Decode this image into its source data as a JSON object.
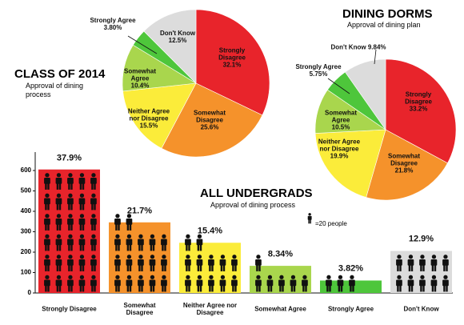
{
  "chart_data": [
    {
      "type": "pie",
      "title": "CLASS OF 2014",
      "subtitle": "Approval of dining process",
      "categories": [
        "Strongly Disagree",
        "Somewhat Disagree",
        "Neither Agree nor Disagree",
        "Somewhat Agree",
        "Strongly Agree",
        "Don't Know"
      ],
      "values": [
        32.1,
        25.6,
        15.5,
        10.4,
        3.8,
        12.5
      ],
      "value_labels": [
        "32.1%",
        "25.6%",
        "15.5%",
        "10.4%",
        "3.80%",
        "12.5%"
      ],
      "colors": [
        "#e8242b",
        "#f5922b",
        "#fbec3a",
        "#a9d64d",
        "#4ec63b",
        "#dcdcdc"
      ]
    },
    {
      "type": "pie",
      "title": "DINING DORMS",
      "subtitle": "Approval of dining plan",
      "categories": [
        "Strongly Disagree",
        "Somewhat Disagree",
        "Neither Agree nor Disagree",
        "Somewhat Agree",
        "Strongly Agree",
        "Don't Know"
      ],
      "values": [
        33.2,
        21.8,
        19.9,
        10.5,
        5.75,
        9.84
      ],
      "value_labels": [
        "33.2%",
        "21.8%",
        "19.9%",
        "10.5%",
        "5.75%",
        "9.84%"
      ],
      "colors": [
        "#e8242b",
        "#f5922b",
        "#fbec3a",
        "#a9d64d",
        "#4ec63b",
        "#dcdcdc"
      ]
    },
    {
      "type": "bar",
      "title": "ALL UNDERGRADS",
      "subtitle": "Approval of dining process",
      "legend": "=20 people",
      "categories": [
        "Strongly Disagree",
        "Somewhat Disagree",
        "Neither Agree nor Disagree",
        "Somewhat Agree",
        "Strongly Agree",
        "Don't Know"
      ],
      "values": [
        605,
        346,
        246,
        133,
        61,
        206
      ],
      "percent_labels": [
        "37.9%",
        "21.7%",
        "15.4%",
        "8.34%",
        "3.82%",
        "12.9%"
      ],
      "colors": [
        "#e8242b",
        "#f5922b",
        "#fbec3a",
        "#a9d64d",
        "#4ec63b",
        "#dcdcdc"
      ],
      "ylim": [
        0,
        600
      ],
      "yticks": [
        0,
        100,
        200,
        300,
        400,
        500,
        600
      ]
    }
  ]
}
